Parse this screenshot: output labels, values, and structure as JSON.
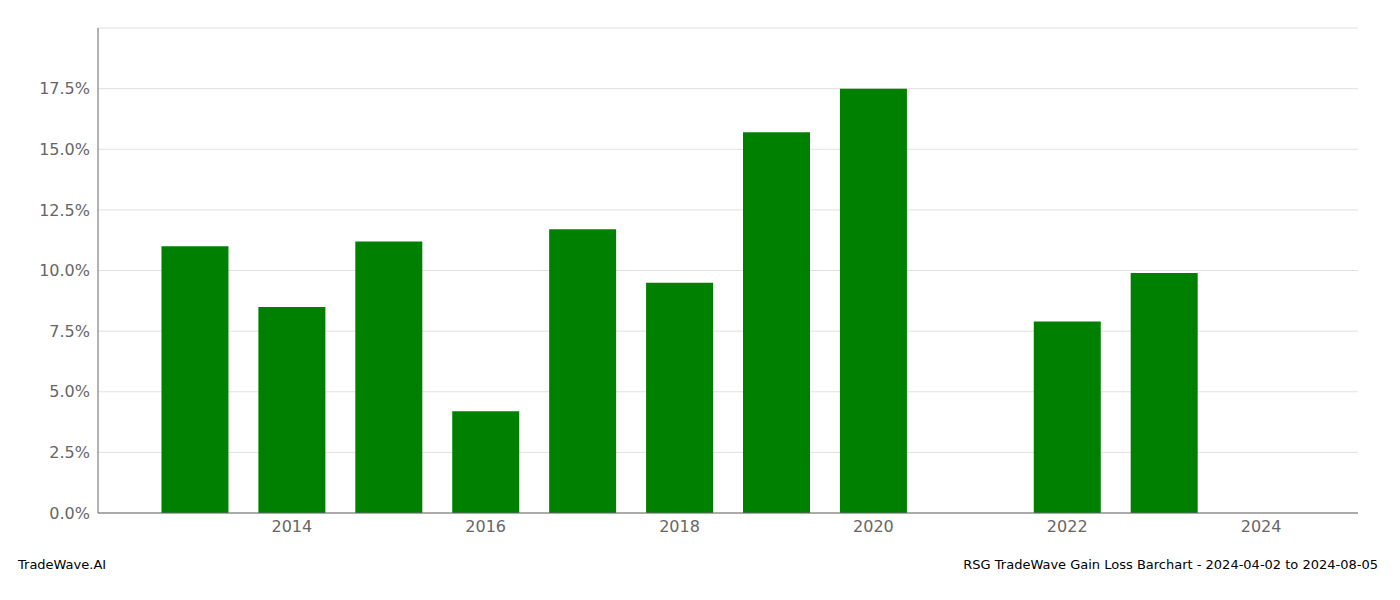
{
  "chart_data": {
    "type": "bar",
    "x": [
      2013,
      2014,
      2015,
      2016,
      2017,
      2018,
      2019,
      2020,
      2022,
      2023
    ],
    "values": [
      0.11,
      0.085,
      0.112,
      0.042,
      0.117,
      0.095,
      0.157,
      0.175,
      0.079,
      0.099
    ],
    "color": "#008000",
    "xlim": [
      2012.0,
      2025.0
    ],
    "xticks": [
      2014,
      2016,
      2018,
      2020,
      2022,
      2024
    ],
    "ylim": [
      0,
      0.2
    ],
    "yticks": [
      {
        "value": 0.0,
        "label": "0.0%"
      },
      {
        "value": 0.025,
        "label": "2.5%"
      },
      {
        "value": 0.05,
        "label": "5.0%"
      },
      {
        "value": 0.075,
        "label": "7.5%"
      },
      {
        "value": 0.1,
        "label": "10.0%"
      },
      {
        "value": 0.125,
        "label": "12.5%"
      },
      {
        "value": 0.15,
        "label": "15.0%"
      },
      {
        "value": 0.175,
        "label": "17.5%"
      }
    ],
    "grid": true,
    "annotations": [
      "TradeWave.AI",
      "RSG TradeWave Gain Loss Barchart - 2024-04-02 to 2024-08-05"
    ]
  }
}
